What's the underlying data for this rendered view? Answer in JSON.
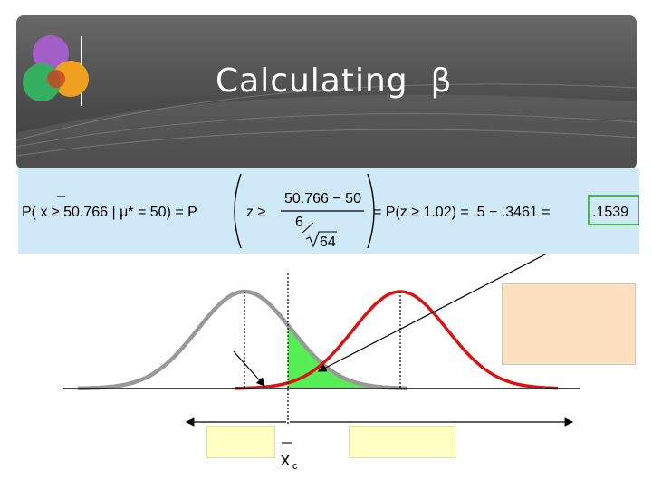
{
  "slide": {
    "title": "Calculating  β",
    "formula": {
      "lhs": "P( x ≥ 50.766 | μ* = 50) = P",
      "z_prefix": "z ≥",
      "numerator": "50.766 − 50",
      "denominator_top": "6",
      "denominator_bottom": "64",
      "rhs": "= P(z ≥ 1.02) = .5 − .3461 =",
      "answer": ".1539"
    },
    "graph": {
      "xc_label": "x",
      "xc_subscript": "c"
    }
  },
  "colors": {
    "title_bg": "#555555",
    "formula_bg": "#cfe9f8",
    "answer_border": "#44bb44",
    "null_curve": "#999999",
    "alt_curve": "#dd1111",
    "shaded_area": "#55ee55",
    "legend_box": "#fce0c0",
    "yellow_box": "#ffffc4"
  }
}
